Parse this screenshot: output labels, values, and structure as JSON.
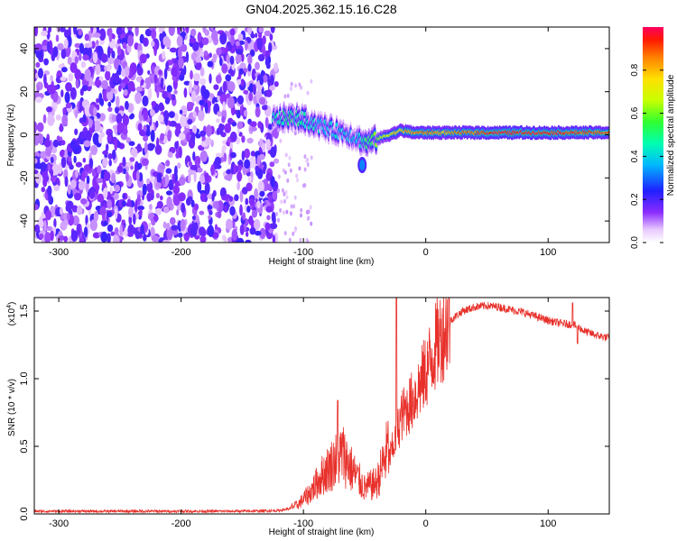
{
  "figure_title": "GN04.2025.362.15.16.C28",
  "chart_data": [
    {
      "type": "heatmap",
      "xlabel": "Height of straight line (km)",
      "ylabel": "Frequency (Hz)",
      "xlim": [
        -320,
        150
      ],
      "ylim": [
        -50,
        50
      ],
      "xticks": [
        -300,
        -200,
        -100,
        0,
        100
      ],
      "yticks": [
        -40,
        -20,
        0,
        20,
        40
      ],
      "colorbar": {
        "label": "Normalized spectral amplitude",
        "range": [
          0,
          1
        ],
        "ticks": [
          0.0,
          0.2,
          0.4,
          0.6,
          0.8
        ]
      },
      "noise_region": {
        "x_range": [
          -320,
          -122
        ],
        "y_range": [
          -50,
          50
        ],
        "typical_amplitude": 0.15
      },
      "signal_track": [
        {
          "x": -125,
          "freq": 7,
          "amp": 0.42
        },
        {
          "x": -115,
          "freq": 8,
          "amp": 0.5
        },
        {
          "x": -105,
          "freq": 8,
          "amp": 0.48
        },
        {
          "x": -95,
          "freq": 6,
          "amp": 0.45
        },
        {
          "x": -85,
          "freq": 4,
          "amp": 0.38
        },
        {
          "x": -75,
          "freq": 2,
          "amp": 0.4
        },
        {
          "x": -65,
          "freq": 1,
          "amp": 0.36
        },
        {
          "x": -55,
          "freq": -2,
          "amp": 0.38
        },
        {
          "x": -48,
          "freq": -4,
          "amp": 0.5
        },
        {
          "x": -40,
          "freq": -2,
          "amp": 0.6
        },
        {
          "x": -30,
          "freq": 0,
          "amp": 0.72
        },
        {
          "x": -20,
          "freq": 2,
          "amp": 0.82
        },
        {
          "x": -10,
          "freq": 1,
          "amp": 0.86
        },
        {
          "x": 0,
          "freq": 1,
          "amp": 0.88
        },
        {
          "x": 15,
          "freq": 1,
          "amp": 0.82
        },
        {
          "x": 30,
          "freq": 1,
          "amp": 0.88
        },
        {
          "x": 50,
          "freq": 1,
          "amp": 0.95
        },
        {
          "x": 70,
          "freq": 1,
          "amp": 1.0
        },
        {
          "x": 90,
          "freq": 1,
          "amp": 0.96
        },
        {
          "x": 110,
          "freq": 1,
          "amp": 0.95
        },
        {
          "x": 130,
          "freq": 1,
          "amp": 0.92
        },
        {
          "x": 150,
          "freq": 1,
          "amp": 0.9
        }
      ],
      "side_blob": {
        "x": -52,
        "freq": -14,
        "amp": 0.32
      }
    },
    {
      "type": "line",
      "xlabel": "Height of straight line (km)",
      "ylabel": "SNR (10 * v/v)",
      "scale_label": "(x10",
      "scale_exponent": "4",
      "xlim": [
        -320,
        150
      ],
      "ylim": [
        0,
        1.6
      ],
      "xticks": [
        -300,
        -200,
        -100,
        0,
        100
      ],
      "yticks": [
        "0.0",
        "0.5",
        "1.0",
        "1.5"
      ],
      "series": [
        {
          "name": "SNR",
          "color": "#e8302a",
          "x": [
            -320,
            -300,
            -250,
            -200,
            -150,
            -120,
            -105,
            -95,
            -85,
            -75,
            -68,
            -60,
            -50,
            -40,
            -30,
            -25,
            -20,
            -10,
            0,
            10,
            20,
            30,
            40,
            50,
            60,
            70,
            80,
            90,
            100,
            110,
            120,
            125,
            130,
            140,
            150
          ],
          "y": [
            0.02,
            0.02,
            0.02,
            0.02,
            0.02,
            0.025,
            0.05,
            0.12,
            0.22,
            0.3,
            0.35,
            0.25,
            0.15,
            0.18,
            0.4,
            0.55,
            0.72,
            0.85,
            1.05,
            1.28,
            1.43,
            1.5,
            1.53,
            1.54,
            1.53,
            1.51,
            1.49,
            1.46,
            1.43,
            1.41,
            1.4,
            1.38,
            1.35,
            1.32,
            1.3
          ]
        }
      ],
      "spikes": [
        {
          "x": -72,
          "y": 0.84
        },
        {
          "x": -24,
          "y": 1.6
        },
        {
          "x": 120,
          "y": 1.56
        },
        {
          "x": 124,
          "y": 1.26
        }
      ]
    }
  ]
}
